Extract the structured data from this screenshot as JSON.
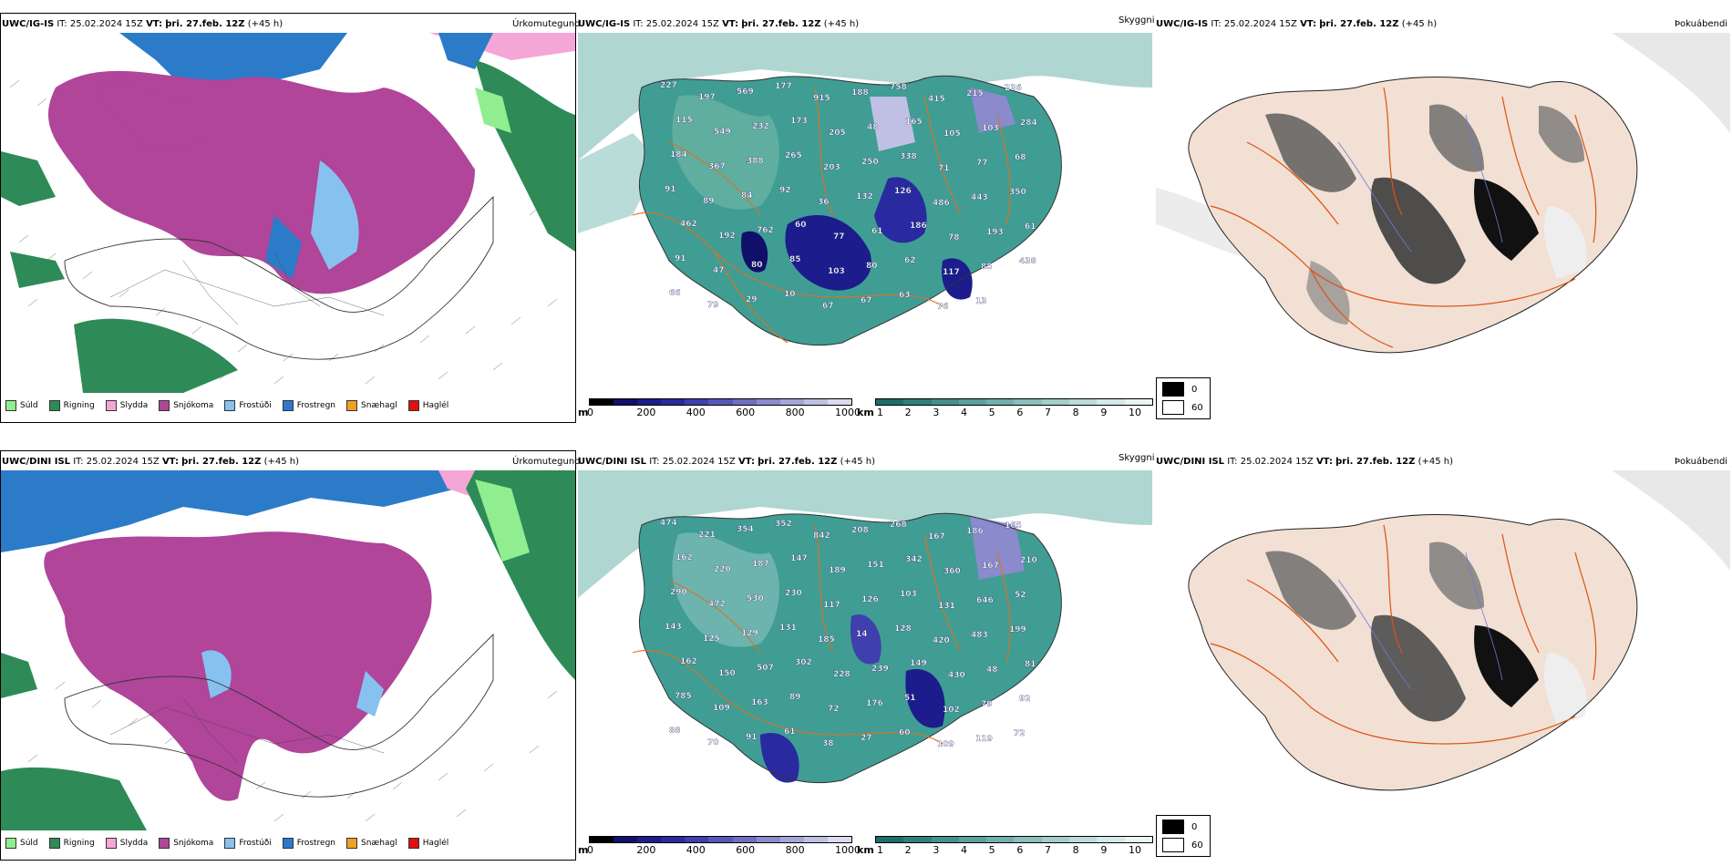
{
  "rows": [
    {
      "model": "UWC/IG-IS",
      "it_label": "IT:",
      "it": "25.02.2024 15Z",
      "vt_label": "VT:",
      "vt": "þri. 27.feb. 12Z",
      "lead": "(+45 h)"
    },
    {
      "model": "UWC/DINI ISL",
      "it_label": "IT:",
      "it": "25.02.2024 15Z",
      "vt_label": "VT:",
      "vt": "þri. 27.feb. 12Z",
      "lead": "(+45 h)"
    }
  ],
  "panel_titles": {
    "precip": "Úrkomutegund",
    "clouds": "Skyggni",
    "fog": "Þokuábendi"
  },
  "precip_legend": [
    {
      "label": "Súld",
      "color": "#90ee90"
    },
    {
      "label": "Rigning",
      "color": "#2e8b57"
    },
    {
      "label": "Slydda",
      "color": "#f4a6d7"
    },
    {
      "label": "Snjókoma",
      "color": "#b0459a"
    },
    {
      "label": "Frostúði",
      "color": "#87c1f0"
    },
    {
      "label": "Frostregn",
      "color": "#2b7bc9"
    },
    {
      "label": "Snæhagl",
      "color": "#f0a020"
    },
    {
      "label": "Haglél",
      "color": "#e01010"
    }
  ],
  "ceiling_scale": {
    "unit": "m",
    "ticks": [
      "0",
      "200",
      "400",
      "600",
      "800",
      "1000"
    ],
    "colors": [
      "#000000",
      "#10106a",
      "#1c1c8c",
      "#2a2aa0",
      "#3f3fae",
      "#5757b8",
      "#6f6fc2",
      "#8a8acc",
      "#a5a5d8",
      "#c0c0e4",
      "#dadaf0"
    ]
  },
  "visibility_scale": {
    "unit": "km",
    "ticks": [
      "1",
      "2",
      "3",
      "4",
      "5",
      "6",
      "7",
      "8",
      "9",
      "10"
    ],
    "colors": [
      "#1c6e68",
      "#2f807a",
      "#44918b",
      "#5aa19c",
      "#71b0ac",
      "#8abfbc",
      "#a3cecb",
      "#bcdcda",
      "#d4e9e8",
      "#eaf4f4"
    ]
  },
  "fog_legend": [
    {
      "label": "0",
      "color": "#000000"
    },
    {
      "label": "60",
      "color": "#ffffff"
    }
  ],
  "cloud_labels_top": [
    "227",
    "197",
    "569",
    "177",
    "915",
    "188",
    "758",
    "415",
    "215",
    "236",
    "115",
    "549",
    "232",
    "173",
    "205",
    "48",
    "165",
    "105",
    "103",
    "284",
    "184",
    "367",
    "388",
    "265",
    "203",
    "250",
    "338",
    "71",
    "77",
    "68",
    "91",
    "89",
    "84",
    "92",
    "36",
    "132",
    "126",
    "486",
    "443",
    "350",
    "462",
    "192",
    "762",
    "60",
    "77",
    "61",
    "186",
    "78",
    "193",
    "61",
    "91",
    "47",
    "80",
    "85",
    "103",
    "80",
    "62",
    "117",
    "85",
    "438",
    "66",
    "79",
    "29",
    "10",
    "67",
    "67",
    "63",
    "76",
    "13"
  ],
  "cloud_labels_bottom": [
    "474",
    "221",
    "354",
    "352",
    "842",
    "208",
    "268",
    "167",
    "186",
    "165",
    "162",
    "220",
    "187",
    "147",
    "189",
    "151",
    "342",
    "360",
    "167",
    "210",
    "290",
    "472",
    "530",
    "230",
    "117",
    "126",
    "103",
    "131",
    "646",
    "52",
    "143",
    "125",
    "129",
    "131",
    "185",
    "14",
    "128",
    "420",
    "483",
    "199",
    "162",
    "150",
    "507",
    "302",
    "228",
    "239",
    "149",
    "430",
    "48",
    "81",
    "785",
    "109",
    "163",
    "89",
    "72",
    "176",
    "51",
    "102",
    "79",
    "92",
    "88",
    "70",
    "91",
    "61",
    "38",
    "27",
    "60",
    "109",
    "119",
    "72"
  ]
}
